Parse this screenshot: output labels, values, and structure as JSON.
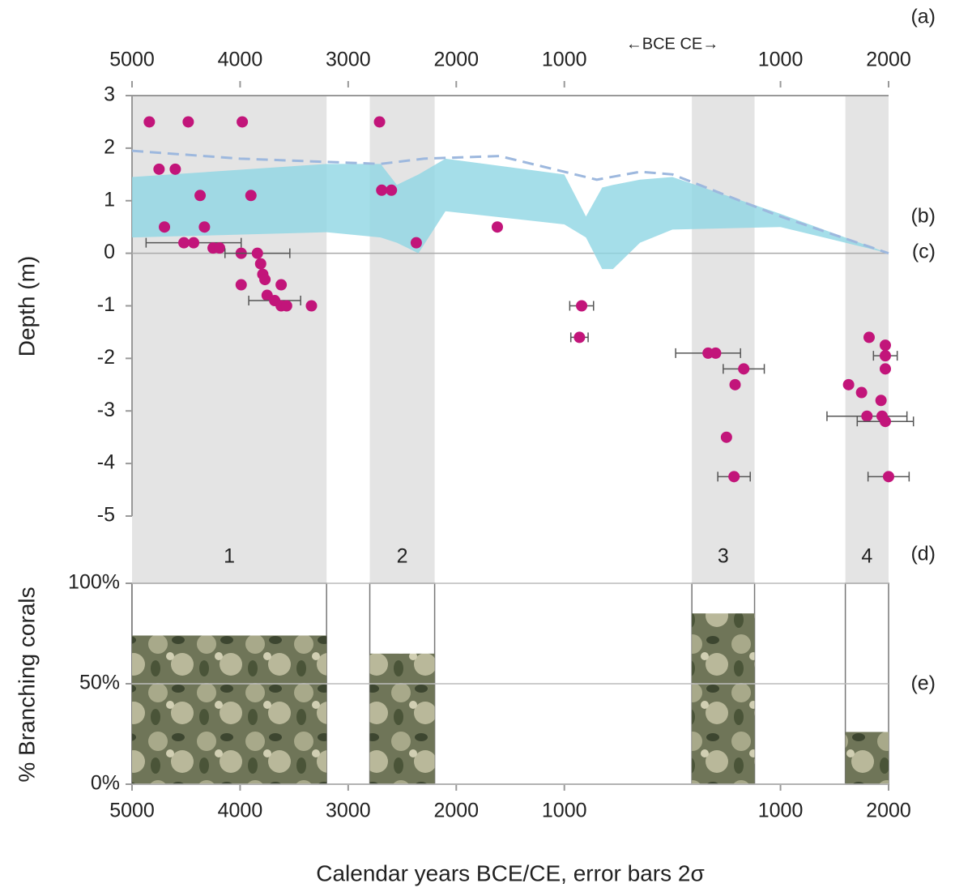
{
  "panel_labels": [
    "(a)",
    "(b)",
    "(c)",
    "(d)",
    "(e)"
  ],
  "x_label": "Calendar years BCE/CE, error bars 2σ",
  "era_label": "←BCE CE→",
  "chart_data": [
    {
      "type": "scatter",
      "y_label": "Depth (m)",
      "xlim": [
        -5000,
        2000
      ],
      "xticks": [
        {
          "value": -5000,
          "label": "5000"
        },
        {
          "value": -4000,
          "label": "4000"
        },
        {
          "value": -3000,
          "label": "3000"
        },
        {
          "value": -2000,
          "label": "2000"
        },
        {
          "value": -1000,
          "label": "1000"
        },
        1000,
        2000
      ],
      "ylim": [
        -5,
        3
      ],
      "yticks": [
        -5,
        -4,
        -3,
        -2,
        -1,
        0,
        1,
        2,
        3
      ],
      "series": [
        {
          "color": "#c2157a",
          "x": [
            -4840,
            -4480,
            -3980,
            -2710,
            -4750,
            -4600,
            -4370,
            -3900,
            -2690,
            -2600,
            -4700,
            -4330,
            -1620,
            -4430,
            -4520,
            -4250,
            -4190,
            -2370,
            -3990,
            -3840,
            -3810,
            -3790,
            -3770,
            -3990,
            -3620,
            -3750,
            -3680,
            -3620,
            -3570,
            -3340,
            -840,
            -860,
            330,
            400,
            660,
            580,
            500,
            570,
            1820,
            1970,
            1970,
            1970,
            1630,
            1750,
            1930,
            1800,
            1940,
            1970,
            2000
          ],
          "values": [
            2.5,
            2.5,
            2.5,
            2.5,
            1.6,
            1.6,
            1.1,
            1.1,
            1.2,
            1.2,
            0.5,
            0.5,
            0.5,
            0.2,
            0.2,
            0.1,
            0.1,
            0.2,
            0,
            0,
            -0.2,
            -0.4,
            -0.5,
            -0.6,
            -0.6,
            -0.8,
            -0.9,
            -1.0,
            -1.0,
            -1.0,
            -1.0,
            -1.6,
            -1.9,
            -1.9,
            -2.2,
            -2.5,
            -3.5,
            -4.25,
            -1.6,
            -1.75,
            -1.95,
            -2.2,
            -2.5,
            -2.65,
            -2.8,
            -3.1,
            -3.1,
            -3.2,
            -4.25
          ],
          "xerr": [
            null,
            null,
            null,
            null,
            null,
            null,
            null,
            null,
            null,
            null,
            null,
            null,
            null,
            440,
            null,
            null,
            null,
            null,
            null,
            300,
            null,
            null,
            null,
            null,
            null,
            null,
            240,
            null,
            null,
            null,
            110,
            80,
            300,
            null,
            190,
            null,
            null,
            150,
            null,
            null,
            110,
            null,
            null,
            null,
            null,
            370,
            null,
            260,
            190
          ]
        }
      ],
      "band": {
        "color": "#8fd6e3",
        "x": [
          -5000,
          -3200,
          -2700,
          -2550,
          -2350,
          -2100,
          -1000,
          -800,
          -650,
          -550,
          -300,
          0,
          1000,
          2000
        ],
        "upper": [
          1.45,
          1.7,
          1.7,
          1.3,
          1.5,
          1.8,
          1.5,
          0.7,
          1.25,
          1.3,
          1.4,
          1.45,
          0.75,
          0
        ],
        "lower": [
          0.3,
          0.4,
          0.3,
          0.2,
          0,
          0.8,
          0.55,
          0.3,
          -0.3,
          -0.3,
          0.2,
          0.45,
          0.5,
          0
        ]
      },
      "dashed": {
        "color": "#9db8de",
        "x": [
          -5000,
          -4000,
          -2700,
          -2300,
          -1600,
          -700,
          -300,
          0,
          1000,
          2000
        ],
        "values": [
          1.95,
          1.8,
          1.7,
          1.8,
          1.85,
          1.4,
          1.55,
          1.5,
          0.7,
          0
        ]
      }
    },
    {
      "type": "bar",
      "y_label": "% Branching corals",
      "categories": [
        "1",
        "2",
        "3",
        "4"
      ],
      "x_start": [
        -5000,
        -2800,
        180,
        1600
      ],
      "x_end": [
        -3200,
        -2200,
        760,
        2000
      ],
      "values": [
        74,
        65,
        85,
        26
      ],
      "xlim": [
        -5000,
        2000
      ],
      "xticks": [
        {
          "value": -5000,
          "label": "5000"
        },
        {
          "value": -4000,
          "label": "4000"
        },
        {
          "value": -3000,
          "label": "3000"
        },
        {
          "value": -2000,
          "label": "2000"
        },
        {
          "value": -1000,
          "label": "1000"
        },
        1000,
        2000
      ],
      "ylim": [
        0,
        100
      ],
      "yticks": [
        {
          "value": 0,
          "label": "0%"
        },
        {
          "value": 50,
          "label": "50%"
        },
        {
          "value": 100,
          "label": "100%"
        }
      ],
      "grid": true
    }
  ]
}
